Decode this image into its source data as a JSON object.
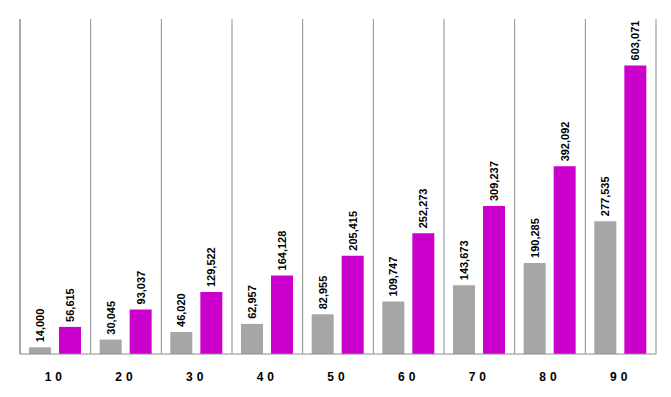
{
  "chart_data": {
    "type": "bar",
    "categories": [
      "10",
      "20",
      "30",
      "40",
      "50",
      "60",
      "70",
      "80",
      "90"
    ],
    "series": [
      {
        "color": "#a6a6a6",
        "values": [
          14000,
          30045,
          46020,
          62957,
          82955,
          109747,
          143673,
          190285,
          277535
        ],
        "value_labels": [
          "14,000",
          "30,045",
          "46,020",
          "62,957",
          "82,955",
          "109,747",
          "143,673",
          "190,285",
          "277,535"
        ]
      },
      {
        "color": "#cc00cc",
        "values": [
          56615,
          93037,
          129522,
          164128,
          205415,
          252273,
          309237,
          392092,
          603071
        ],
        "value_labels": [
          "56,615",
          "93,037",
          "129,522",
          "164,128",
          "205,415",
          "252,273",
          "309,237",
          "392,092",
          "603,071"
        ]
      }
    ],
    "ylim": [
      0,
      700000
    ],
    "grid": true,
    "data_labels": true,
    "tick_labels": "x"
  }
}
